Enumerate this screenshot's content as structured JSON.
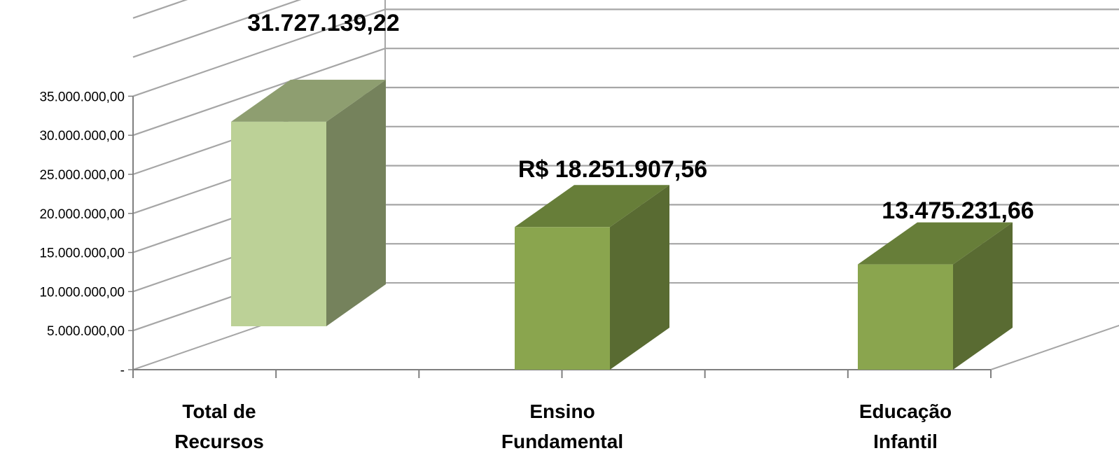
{
  "chart_data": {
    "type": "bar",
    "categories": [
      [
        "Total de",
        "Recursos"
      ],
      [
        "Ensino",
        "Fundamental"
      ],
      [
        "Educação",
        "Infantil"
      ]
    ],
    "values": [
      31727139.22,
      18251907.56,
      13475231.66
    ],
    "data_labels": [
      "31.727.139,22",
      "R$ 18.251.907,56",
      "13.475.231,66"
    ],
    "y_ticks": [
      {
        "value": 0,
        "label": "-"
      },
      {
        "value": 5000000,
        "label": "5.000.000,00"
      },
      {
        "value": 10000000,
        "label": "10.000.000,00"
      },
      {
        "value": 15000000,
        "label": "15.000.000,00"
      },
      {
        "value": 20000000,
        "label": "20.000.000,00"
      },
      {
        "value": 25000000,
        "label": "25.000.000,00"
      },
      {
        "value": 30000000,
        "label": "30.000.000,00"
      },
      {
        "value": 35000000,
        "label": "35.000.000,00"
      }
    ],
    "ylim": [
      0,
      35000000
    ],
    "grid": true,
    "style": "3d-column",
    "colors": {
      "highlight_front": "#bcd197",
      "highlight_top": "#8e9e70",
      "highlight_side": "#75825c",
      "front": "#8aa54e",
      "top": "#677e39",
      "side": "#596b32",
      "grid": "#a6a6a6",
      "axis": "#7f7f7f"
    }
  }
}
